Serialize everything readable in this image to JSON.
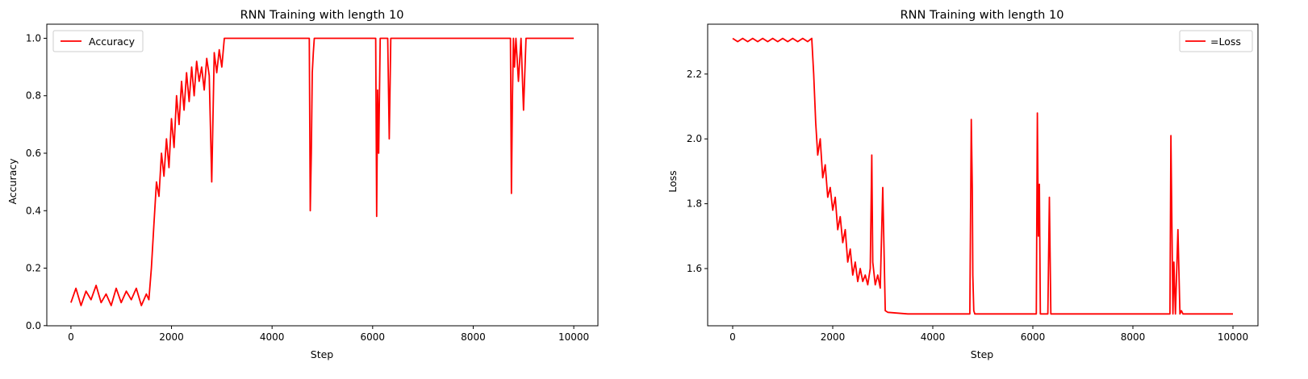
{
  "chart_data": [
    {
      "type": "line",
      "title": "RNN Training with length 10",
      "xlabel": "Step",
      "ylabel": "Accuracy",
      "xlim": [
        -480,
        10480
      ],
      "ylim": [
        -0.0005,
        1.049
      ],
      "xticks": [
        0,
        2000,
        4000,
        6000,
        8000,
        10000
      ],
      "xtick_labels": [
        "0",
        "2000",
        "4000",
        "6000",
        "8000",
        "10000"
      ],
      "yticks": [
        0.0,
        0.2,
        0.4,
        0.6,
        0.8,
        1.0
      ],
      "ytick_labels": [
        "0.0",
        "0.2",
        "0.4",
        "0.6",
        "0.8",
        "1.0"
      ],
      "grid": false,
      "legend_position": "top-left",
      "series": [
        {
          "name": "Accuracy",
          "color": "#ff0000",
          "x": [
            0,
            100,
            200,
            300,
            400,
            500,
            600,
            700,
            800,
            900,
            1000,
            1100,
            1200,
            1300,
            1400,
            1500,
            1550,
            1600,
            1650,
            1700,
            1750,
            1800,
            1850,
            1900,
            1950,
            2000,
            2050,
            2100,
            2150,
            2200,
            2250,
            2300,
            2350,
            2400,
            2450,
            2500,
            2550,
            2600,
            2650,
            2700,
            2750,
            2800,
            2850,
            2900,
            2950,
            3000,
            3050,
            3100,
            3500,
            4000,
            4500,
            4740,
            4760,
            4780,
            4800,
            4820,
            4840,
            4860,
            4900,
            5500,
            6000,
            6060,
            6080,
            6100,
            6120,
            6150,
            6200,
            6300,
            6330,
            6360,
            6400,
            7000,
            8000,
            8700,
            8740,
            8760,
            8780,
            8800,
            8820,
            8850,
            8900,
            8950,
            9000,
            9050,
            9100,
            9500,
            10000
          ],
          "y": [
            0.08,
            0.13,
            0.07,
            0.12,
            0.09,
            0.14,
            0.08,
            0.11,
            0.07,
            0.13,
            0.08,
            0.12,
            0.09,
            0.13,
            0.07,
            0.11,
            0.09,
            0.2,
            0.35,
            0.5,
            0.45,
            0.6,
            0.52,
            0.65,
            0.55,
            0.72,
            0.62,
            0.8,
            0.7,
            0.85,
            0.75,
            0.88,
            0.78,
            0.9,
            0.8,
            0.92,
            0.85,
            0.9,
            0.82,
            0.93,
            0.87,
            0.5,
            0.95,
            0.88,
            0.96,
            0.9,
            1.0,
            1.0,
            1.0,
            1.0,
            1.0,
            1.0,
            0.4,
            0.6,
            0.88,
            0.95,
            1.0,
            1.0,
            1.0,
            1.0,
            1.0,
            1.0,
            0.38,
            0.82,
            0.6,
            1.0,
            1.0,
            1.0,
            0.65,
            1.0,
            1.0,
            1.0,
            1.0,
            1.0,
            1.0,
            0.46,
            0.8,
            1.0,
            0.9,
            1.0,
            0.85,
            1.0,
            0.75,
            1.0,
            1.0,
            1.0,
            1.0
          ]
        }
      ]
    },
    {
      "type": "line",
      "title": "RNN Training with length 10",
      "xlabel": "Step",
      "ylabel": "Loss",
      "xlim": [
        -500,
        10500
      ],
      "ylim": [
        1.4235,
        2.3538
      ],
      "xticks": [
        0,
        2000,
        4000,
        6000,
        8000,
        10000
      ],
      "xtick_labels": [
        "0",
        "2000",
        "4000",
        "6000",
        "8000",
        "10000"
      ],
      "yticks": [
        1.6,
        1.8,
        2.0,
        2.2
      ],
      "ytick_labels": [
        "1.6",
        "1.8",
        "2.0",
        "2.2"
      ],
      "grid": false,
      "legend_position": "top-right",
      "series": [
        {
          "name": "=Loss",
          "color": "#ff0000",
          "x": [
            0,
            100,
            200,
            300,
            400,
            500,
            600,
            700,
            800,
            900,
            1000,
            1100,
            1200,
            1300,
            1400,
            1500,
            1580,
            1620,
            1660,
            1700,
            1750,
            1800,
            1850,
            1900,
            1950,
            2000,
            2050,
            2100,
            2150,
            2200,
            2250,
            2300,
            2350,
            2400,
            2450,
            2500,
            2550,
            2600,
            2650,
            2700,
            2750,
            2780,
            2800,
            2850,
            2900,
            2950,
            3000,
            3050,
            3100,
            3500,
            4000,
            4500,
            4740,
            4770,
            4790,
            4800,
            4820,
            4840,
            4860,
            5000,
            6000,
            6070,
            6090,
            6110,
            6130,
            6150,
            6180,
            6300,
            6330,
            6360,
            6400,
            7000,
            8000,
            8700,
            8740,
            8760,
            8780,
            8800,
            8820,
            8850,
            8900,
            8940,
            8970,
            9000,
            9050,
            9100,
            9500,
            10000
          ],
          "y": [
            2.31,
            2.3,
            2.31,
            2.3,
            2.31,
            2.3,
            2.31,
            2.3,
            2.31,
            2.3,
            2.31,
            2.3,
            2.31,
            2.3,
            2.31,
            2.3,
            2.31,
            2.2,
            2.05,
            1.95,
            2.0,
            1.88,
            1.92,
            1.82,
            1.85,
            1.78,
            1.82,
            1.72,
            1.76,
            1.68,
            1.72,
            1.62,
            1.66,
            1.58,
            1.62,
            1.56,
            1.6,
            1.56,
            1.58,
            1.55,
            1.6,
            1.95,
            1.62,
            1.55,
            1.58,
            1.54,
            1.85,
            1.47,
            1.465,
            1.46,
            1.46,
            1.46,
            1.46,
            2.06,
            1.84,
            1.58,
            1.47,
            1.46,
            1.46,
            1.46,
            1.46,
            1.46,
            2.08,
            1.7,
            1.86,
            1.46,
            1.46,
            1.46,
            1.82,
            1.46,
            1.46,
            1.46,
            1.46,
            1.46,
            1.46,
            2.01,
            1.72,
            1.46,
            1.62,
            1.46,
            1.72,
            1.46,
            1.47,
            1.46,
            1.46,
            1.46,
            1.46,
            1.46
          ]
        }
      ]
    }
  ]
}
